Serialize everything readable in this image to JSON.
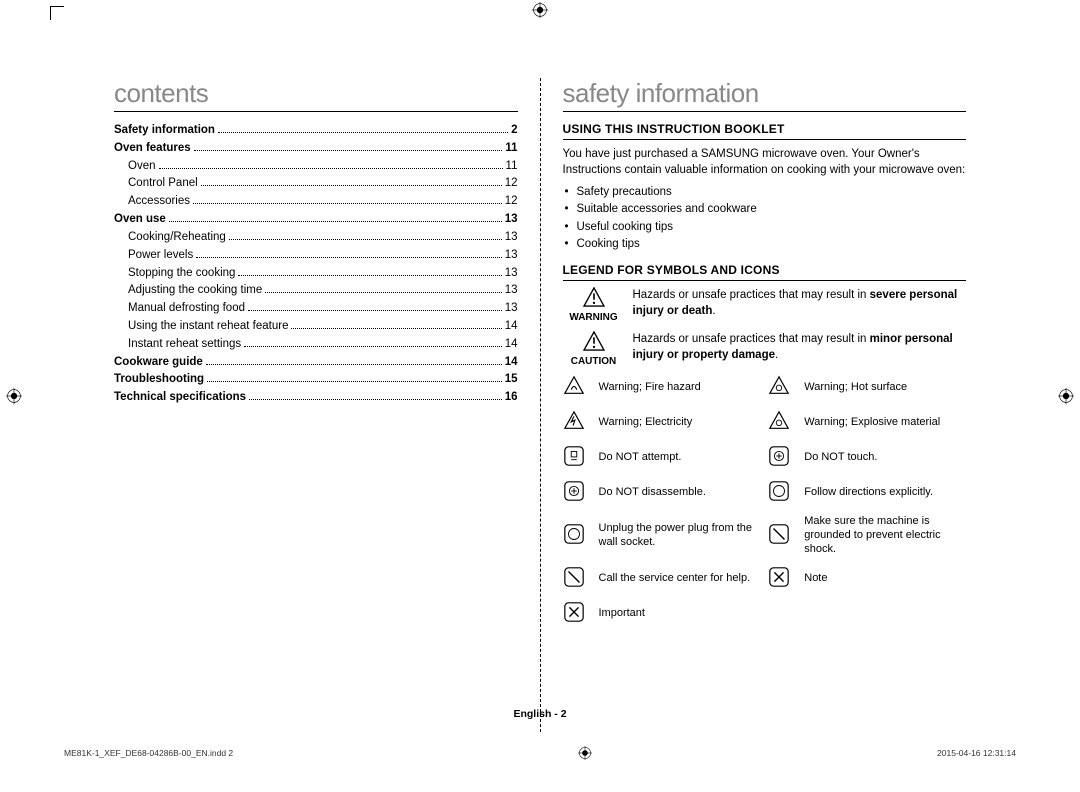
{
  "left": {
    "heading": "contents",
    "toc": [
      {
        "label": "Safety information",
        "page": "2",
        "bold": true
      },
      {
        "label": "Oven features",
        "page": "11",
        "bold": true
      },
      {
        "label": "Oven",
        "page": "11",
        "sub": true
      },
      {
        "label": "Control Panel",
        "page": "12",
        "sub": true
      },
      {
        "label": "Accessories",
        "page": "12",
        "sub": true
      },
      {
        "label": "Oven use",
        "page": "13",
        "bold": true
      },
      {
        "label": "Cooking/Reheating",
        "page": "13",
        "sub": true
      },
      {
        "label": "Power levels",
        "page": "13",
        "sub": true
      },
      {
        "label": "Stopping the cooking",
        "page": "13",
        "sub": true
      },
      {
        "label": "Adjusting the cooking time",
        "page": "13",
        "sub": true
      },
      {
        "label": "Manual defrosting food",
        "page": "13",
        "sub": true
      },
      {
        "label": "Using the instant reheat feature",
        "page": "14",
        "sub": true
      },
      {
        "label": "Instant reheat settings",
        "page": "14",
        "sub": true
      },
      {
        "label": "Cookware guide",
        "page": "14",
        "bold": true
      },
      {
        "label": "Troubleshooting",
        "page": "15",
        "bold": true
      },
      {
        "label": "Technical specifications",
        "page": "16",
        "bold": true
      }
    ]
  },
  "right": {
    "heading": "safety information",
    "section1_title": "USING THIS INSTRUCTION BOOKLET",
    "intro": "You have just purchased a SAMSUNG microwave oven. Your Owner's Instructions contain valuable information on cooking with your microwave oven:",
    "bullets": [
      "Safety precautions",
      "Suitable accessories and cookware",
      "Useful cooking tips",
      "Cooking tips"
    ],
    "section2_title": "LEGEND FOR SYMBOLS AND ICONS",
    "warning_label": "WARNING",
    "warning_text_a": "Hazards or unsafe practices that may result in ",
    "warning_text_b": "severe personal injury or death",
    "caution_label": "CAUTION",
    "caution_text_a": "Hazards or unsafe practices that may result in ",
    "caution_text_b": "minor personal injury or property damage",
    "icons": [
      {
        "l": "Warning; Fire hazard",
        "r": "Warning; Hot surface"
      },
      {
        "l": "Warning; Electricity",
        "r": "Warning; Explosive material"
      },
      {
        "l": "Do NOT attempt.",
        "r": "Do NOT touch."
      },
      {
        "l": "Do NOT disassemble.",
        "r": "Follow directions explicitly."
      },
      {
        "l": "Unplug the power plug from the wall socket.",
        "r": "Make sure the machine is grounded to prevent electric shock."
      },
      {
        "l": "Call the service center for help.",
        "r": "Note"
      },
      {
        "l": "Important",
        "r": ""
      }
    ]
  },
  "footer": "English - 2",
  "print_file": "ME81K-1_XEF_DE68-04286B-00_EN.indd   2",
  "print_time": "2015-04-16   12:31:14"
}
